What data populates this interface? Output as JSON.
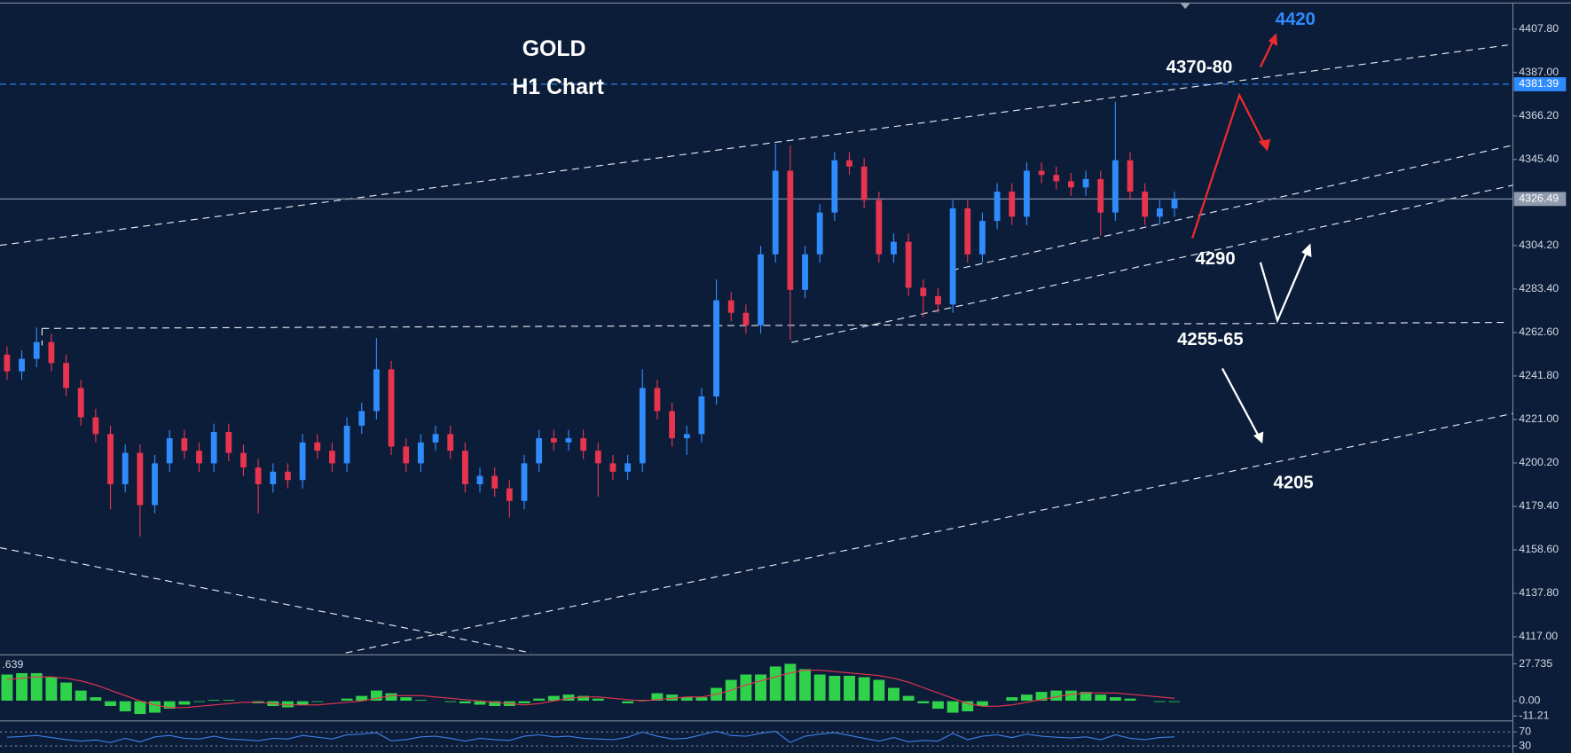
{
  "chart_data": [
    {
      "type": "candlestick",
      "title": "GOLD",
      "subtitle": "H1 Chart",
      "open": [
        4252,
        4244,
        4250,
        4258,
        4248,
        4236,
        4222,
        4214,
        4190,
        4205,
        4180,
        4200,
        4212,
        4206,
        4200,
        4215,
        4205,
        4198,
        4190,
        4196,
        4192,
        4210,
        4206,
        4200,
        4218,
        4225,
        4245,
        4208,
        4200,
        4210,
        4214,
        4206,
        4190,
        4194,
        4188,
        4182,
        4200,
        4212,
        4210,
        4212,
        4206,
        4200,
        4196,
        4200,
        4236,
        4225,
        4212,
        4214,
        4232,
        4278,
        4272,
        4266,
        4300,
        4340,
        4283,
        4300,
        4320,
        4345,
        4342,
        4326,
        4300,
        4306,
        4284,
        4280,
        4276,
        4322,
        4300,
        4316,
        4330,
        4318,
        4340,
        4338,
        4335,
        4332,
        4336,
        4320,
        4345,
        4330,
        4318,
        4322
      ],
      "high": [
        4256,
        4254,
        4265,
        4262,
        4252,
        4240,
        4226,
        4218,
        4209,
        4209,
        4204,
        4216,
        4216,
        4210,
        4219,
        4219,
        4209,
        4202,
        4200,
        4200,
        4214,
        4214,
        4210,
        4222,
        4229,
        4260,
        4249,
        4212,
        4214,
        4218,
        4218,
        4210,
        4198,
        4198,
        4192,
        4204,
        4216,
        4216,
        4216,
        4216,
        4210,
        4204,
        4204,
        4245,
        4240,
        4229,
        4218,
        4236,
        4288,
        4282,
        4276,
        4304,
        4353,
        4352,
        4304,
        4324,
        4349,
        4349,
        4346,
        4330,
        4310,
        4310,
        4288,
        4284,
        4326,
        4326,
        4320,
        4334,
        4334,
        4344,
        4344,
        4342,
        4339,
        4340,
        4340,
        4373,
        4349,
        4334,
        4326,
        4330
      ],
      "low": [
        4240,
        4240,
        4246,
        4244,
        4232,
        4218,
        4210,
        4178,
        4186,
        4165,
        4176,
        4196,
        4202,
        4196,
        4196,
        4201,
        4194,
        4176,
        4186,
        4188,
        4188,
        4202,
        4196,
        4196,
        4214,
        4221,
        4204,
        4196,
        4196,
        4206,
        4202,
        4186,
        4186,
        4184,
        4174,
        4178,
        4196,
        4206,
        4206,
        4202,
        4184,
        4192,
        4192,
        4196,
        4221,
        4208,
        4204,
        4210,
        4228,
        4268,
        4262,
        4262,
        4296,
        4259,
        4279,
        4296,
        4316,
        4338,
        4322,
        4296,
        4296,
        4280,
        4270,
        4272,
        4272,
        4296,
        4296,
        4312,
        4314,
        4314,
        4334,
        4331,
        4328,
        4328,
        4309,
        4316,
        4326,
        4314,
        4314,
        4318
      ],
      "close": [
        4244,
        4250,
        4258,
        4248,
        4236,
        4222,
        4214,
        4190,
        4205,
        4180,
        4200,
        4212,
        4206,
        4200,
        4215,
        4205,
        4198,
        4190,
        4196,
        4192,
        4210,
        4206,
        4200,
        4218,
        4225,
        4245,
        4208,
        4200,
        4210,
        4214,
        4206,
        4190,
        4194,
        4188,
        4182,
        4200,
        4212,
        4210,
        4212,
        4206,
        4200,
        4196,
        4200,
        4236,
        4225,
        4212,
        4214,
        4232,
        4278,
        4272,
        4266,
        4300,
        4340,
        4283,
        4300,
        4320,
        4345,
        4342,
        4326,
        4300,
        4306,
        4284,
        4280,
        4276,
        4322,
        4300,
        4316,
        4330,
        4318,
        4340,
        4338,
        4335,
        4332,
        4336,
        4320,
        4345,
        4330,
        4318,
        4322,
        4326.49
      ],
      "up_color": "#2f8cff",
      "down_color": "#e8344e",
      "ylim": [
        4109.3,
        4419.3
      ],
      "yticks": [
        {
          "value": 4407.8,
          "label": "4407.80"
        },
        {
          "value": 4387,
          "label": "4387.00"
        },
        {
          "value": 4366.2,
          "label": "4366.20"
        },
        {
          "value": 4345.4,
          "label": "4345.40"
        },
        {
          "value": 4304.2,
          "label": "4304.20"
        },
        {
          "value": 4283.4,
          "label": "4283.40"
        },
        {
          "value": 4262.6,
          "label": "4262.60"
        },
        {
          "value": 4241.8,
          "label": "4241.80"
        },
        {
          "value": 4221,
          "label": "4221.00"
        },
        {
          "value": 4200.2,
          "label": "4200.20"
        },
        {
          "value": 4179.4,
          "label": "4179.40"
        },
        {
          "value": 4158.6,
          "label": "4158.60"
        },
        {
          "value": 4137.8,
          "label": "4137.80"
        },
        {
          "value": 4117,
          "label": "4117.00"
        }
      ],
      "price_lines": [
        {
          "value": 4381.39,
          "color": "#2f8cff"
        },
        {
          "value": 4326.49,
          "color": "#8f9aad"
        }
      ],
      "annotations": [
        {
          "text": "4420",
          "color": "#2f8cff"
        },
        {
          "text": "4370-80",
          "color": "#ffffff"
        },
        {
          "text": "4290",
          "color": "#ffffff"
        },
        {
          "text": "4255-65",
          "color": "#ffffff"
        },
        {
          "text": "4205",
          "color": "#ffffff"
        }
      ]
    },
    {
      "type": "bar",
      "label": ".639",
      "series": [
        {
          "color": "#2fd24a",
          "values": [
            20,
            21,
            21,
            18,
            14,
            8,
            3,
            -4,
            -8,
            -10,
            -9,
            -6,
            -3,
            -1,
            1,
            1,
            0,
            -2,
            -4,
            -5,
            -3,
            -1,
            0,
            2,
            4,
            8,
            6,
            3,
            1,
            0,
            -1,
            -2,
            -3,
            -4,
            -4,
            -2,
            2,
            4,
            5,
            4,
            2,
            0,
            -2,
            1,
            6,
            5,
            3,
            3,
            10,
            16,
            20,
            20,
            26,
            28,
            24,
            20,
            19,
            19,
            18,
            16,
            10,
            4,
            -2,
            -6,
            -9,
            -8,
            -4,
            0,
            3,
            5,
            7,
            8,
            8,
            7,
            5,
            3,
            2,
            0,
            -1,
            -1
          ]
        },
        {
          "type": "line",
          "color": "#e8344e",
          "values": [
            16,
            17,
            18,
            18,
            17,
            15,
            12,
            8,
            4,
            0,
            -3,
            -5,
            -5,
            -4,
            -3,
            -2,
            -1,
            -1,
            -2,
            -3,
            -3,
            -3,
            -2,
            -1,
            0,
            2,
            4,
            4,
            4,
            3,
            2,
            1,
            0,
            -1,
            -2,
            -3,
            -2,
            0,
            2,
            3,
            3,
            2,
            1,
            0,
            1,
            2,
            3,
            3,
            5,
            8,
            12,
            15,
            18,
            21,
            23,
            23,
            22,
            21,
            20,
            19,
            17,
            14,
            10,
            6,
            2,
            -2,
            -4,
            -4,
            -3,
            -1,
            1,
            3,
            5,
            6,
            6,
            6,
            5,
            4,
            3,
            2
          ]
        }
      ],
      "ylim": [
        -14.2,
        33.7
      ],
      "yticks": [
        27.735,
        {
          "value": 0,
          "label": "0.00"
        },
        -11.21
      ]
    },
    {
      "type": "line",
      "series": [
        {
          "color": "#3f7fe6",
          "values": [
            55,
            57,
            60,
            54,
            48,
            44,
            47,
            40,
            52,
            42,
            56,
            60,
            52,
            50,
            58,
            50,
            48,
            45,
            52,
            50,
            60,
            55,
            50,
            62,
            64,
            68,
            45,
            48,
            56,
            58,
            52,
            44,
            52,
            48,
            46,
            58,
            62,
            56,
            58,
            52,
            50,
            48,
            55,
            70,
            58,
            50,
            52,
            62,
            72,
            60,
            58,
            66,
            72,
            40,
            58,
            64,
            68,
            60,
            52,
            44,
            54,
            42,
            46,
            44,
            66,
            48,
            58,
            62,
            54,
            64,
            58,
            55,
            53,
            56,
            48,
            62,
            52,
            48,
            54,
            56
          ]
        }
      ],
      "ylim": [
        10,
        95.7
      ],
      "yticks": [
        70,
        30
      ]
    }
  ]
}
